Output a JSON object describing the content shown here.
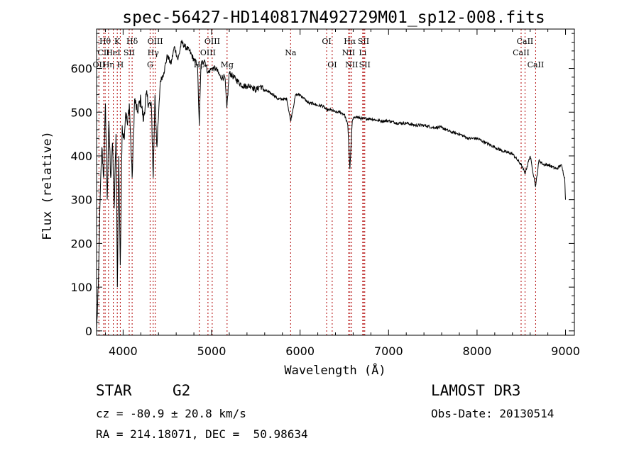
{
  "chart_data": {
    "type": "line",
    "title": "spec-56427-HD140817N492729M01_sp12-008.fits",
    "xlabel": "Wavelength (Å)",
    "ylabel": "Flux (relative)",
    "xlim": [
      3700,
      9100
    ],
    "ylim": [
      -10,
      690
    ],
    "xticks": [
      4000,
      5000,
      6000,
      7000,
      8000,
      9000
    ],
    "yticks": [
      0,
      100,
      200,
      300,
      400,
      500,
      600
    ],
    "grid": false,
    "series": [
      {
        "name": "flux",
        "x": [
          3700,
          3720,
          3740,
          3760,
          3780,
          3800,
          3820,
          3840,
          3860,
          3880,
          3900,
          3920,
          3935,
          3950,
          3968,
          3990,
          4010,
          4030,
          4050,
          4070,
          4102,
          4130,
          4160,
          4200,
          4230,
          4260,
          4290,
          4320,
          4340,
          4360,
          4383,
          4420,
          4460,
          4500,
          4540,
          4580,
          4620,
          4660,
          4700,
          4750,
          4800,
          4840,
          4861,
          4880,
          4920,
          4960,
          5000,
          5050,
          5100,
          5150,
          5172,
          5200,
          5250,
          5300,
          5350,
          5400,
          5450,
          5500,
          5550,
          5600,
          5650,
          5700,
          5750,
          5800,
          5850,
          5893,
          5950,
          6000,
          6050,
          6100,
          6150,
          6200,
          6250,
          6300,
          6350,
          6400,
          6450,
          6500,
          6540,
          6563,
          6590,
          6620,
          6700,
          6800,
          6900,
          7000,
          7100,
          7200,
          7300,
          7400,
          7500,
          7600,
          7700,
          7800,
          7900,
          8000,
          8100,
          8200,
          8300,
          8400,
          8498,
          8542,
          8600,
          8662,
          8700,
          8750,
          8800,
          8850,
          8900,
          8950,
          8990,
          9000
        ],
        "values": [
          0,
          100,
          300,
          420,
          350,
          520,
          300,
          480,
          350,
          430,
          280,
          450,
          100,
          400,
          150,
          470,
          440,
          500,
          470,
          520,
          350,
          530,
          500,
          530,
          480,
          540,
          520,
          510,
          350,
          540,
          420,
          570,
          590,
          630,
          610,
          650,
          620,
          660,
          650,
          640,
          620,
          610,
          470,
          610,
          620,
          590,
          600,
          600,
          580,
          580,
          510,
          590,
          580,
          570,
          560,
          560,
          560,
          550,
          560,
          550,
          545,
          540,
          530,
          530,
          530,
          480,
          540,
          540,
          530,
          520,
          520,
          515,
          515,
          505,
          505,
          500,
          500,
          495,
          470,
          370,
          480,
          490,
          485,
          485,
          480,
          480,
          475,
          475,
          470,
          470,
          465,
          465,
          455,
          450,
          440,
          440,
          430,
          420,
          410,
          405,
          380,
          360,
          400,
          330,
          390,
          380,
          380,
          375,
          370,
          380,
          350,
          300
        ]
      }
    ],
    "line_markers": [
      {
        "label": "Hθ",
        "x": 3797,
        "row": 1
      },
      {
        "label": "CII",
        "x": 3780,
        "row": 2
      },
      {
        "label": "OII",
        "x": 3727,
        "row": 3
      },
      {
        "label": "Hη",
        "x": 3835,
        "row": 3
      },
      {
        "label": "K",
        "x": 3934,
        "row": 1
      },
      {
        "label": "HeI",
        "x": 3889,
        "row": 2
      },
      {
        "label": "H",
        "x": 3968,
        "row": 3
      },
      {
        "label": "Hδ",
        "x": 4102,
        "row": 1
      },
      {
        "label": "SII",
        "x": 4069,
        "row": 2
      },
      {
        "label": "OIII",
        "x": 4363,
        "row": 1
      },
      {
        "label": "Hγ",
        "x": 4340,
        "row": 2
      },
      {
        "label": "G",
        "x": 4305,
        "row": 3
      },
      {
        "label": "OIII",
        "x": 5007,
        "row": 1
      },
      {
        "label": "OIII",
        "x": 4959,
        "row": 2
      },
      {
        "label": "Hβ",
        "x": 4861,
        "row": 3
      },
      {
        "label": "Mg",
        "x": 5175,
        "row": 3
      },
      {
        "label": "Na",
        "x": 5893,
        "row": 2
      },
      {
        "label": "OI",
        "x": 6300,
        "row": 1
      },
      {
        "label": "OI",
        "x": 6363,
        "row": 3
      },
      {
        "label": "Hα",
        "x": 6563,
        "row": 1
      },
      {
        "label": "NII",
        "x": 6548,
        "row": 2
      },
      {
        "label": "NII",
        "x": 6583,
        "row": 3
      },
      {
        "label": "SII",
        "x": 6717,
        "row": 1
      },
      {
        "label": "Li",
        "x": 6708,
        "row": 2
      },
      {
        "label": "SII",
        "x": 6731,
        "row": 3
      },
      {
        "label": "CaII",
        "x": 8542,
        "row": 1
      },
      {
        "label": "CaII",
        "x": 8498,
        "row": 2
      },
      {
        "label": "CaII",
        "x": 8662,
        "row": 3
      }
    ]
  },
  "info": {
    "object_class": "STAR",
    "subclass": "G2",
    "survey": "LAMOST DR3",
    "cz": "cz = -80.9 ± 20.8 km/s",
    "obs_date": "Obs-Date: 20130514",
    "coords": "RA = 214.18071, DEC =  50.98634"
  }
}
